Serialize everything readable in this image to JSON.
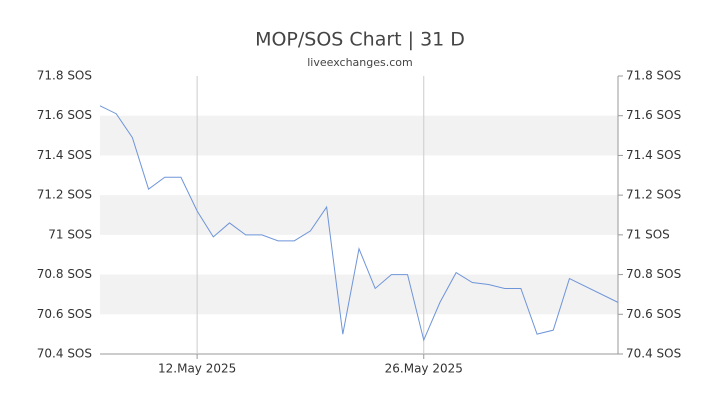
{
  "chart_data": {
    "type": "line",
    "title": "MOP/SOS Chart | 31 D",
    "subtitle": "liveexchanges.com",
    "x": [
      "2025-05-06",
      "2025-05-07",
      "2025-05-08",
      "2025-05-09",
      "2025-05-10",
      "2025-05-11",
      "2025-05-12",
      "2025-05-13",
      "2025-05-14",
      "2025-05-15",
      "2025-05-16",
      "2025-05-17",
      "2025-05-18",
      "2025-05-19",
      "2025-05-20",
      "2025-05-21",
      "2025-05-22",
      "2025-05-23",
      "2025-05-24",
      "2025-05-25",
      "2025-05-26",
      "2025-05-27",
      "2025-05-28",
      "2025-05-29",
      "2025-05-30",
      "2025-05-31",
      "2025-06-01",
      "2025-06-02",
      "2025-06-03",
      "2025-06-04",
      "2025-06-07"
    ],
    "series": [
      {
        "name": "MOP/SOS",
        "color": "#6f95d9",
        "values": [
          71.65,
          71.61,
          71.49,
          71.23,
          71.29,
          71.29,
          71.12,
          70.99,
          71.06,
          71.0,
          71.0,
          70.97,
          70.97,
          71.02,
          71.14,
          70.5,
          70.93,
          70.73,
          70.8,
          70.8,
          70.47,
          70.66,
          70.81,
          70.76,
          70.75,
          70.73,
          70.73,
          70.5,
          70.52,
          70.78,
          70.66
        ]
      }
    ],
    "xlim": [
      "2025-05-06",
      "2025-06-07"
    ],
    "xticks": [
      {
        "value": "2025-05-12",
        "label": "12.May 2025"
      },
      {
        "value": "2025-05-26",
        "label": "26.May 2025"
      }
    ],
    "ylim": [
      70.4,
      71.8
    ],
    "yticks": [
      {
        "value": 70.4,
        "label": "70.4 SOS"
      },
      {
        "value": 70.6,
        "label": "70.6 SOS"
      },
      {
        "value": 70.8,
        "label": "70.8 SOS"
      },
      {
        "value": 71,
        "label": "71 SOS"
      },
      {
        "value": 71.2,
        "label": "71.2 SOS"
      },
      {
        "value": 71.4,
        "label": "71.4 SOS"
      },
      {
        "value": 71.6,
        "label": "71.6 SOS"
      },
      {
        "value": 71.8,
        "label": "71.8 SOS"
      }
    ],
    "grid": true
  }
}
